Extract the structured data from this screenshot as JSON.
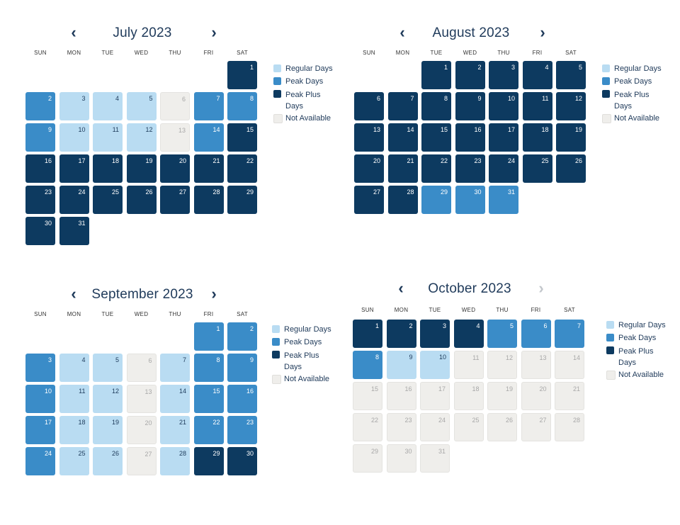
{
  "colors": {
    "regular": "#b9dcf2",
    "peak": "#3a8cc8",
    "peak_plus": "#0d3a60",
    "not_available": "#efeeeb"
  },
  "weekdays": [
    "SUN",
    "MON",
    "TUE",
    "WED",
    "THU",
    "FRI",
    "SAT"
  ],
  "legend": {
    "regular": "Regular Days",
    "peak": "Peak Days",
    "peak_plus_line1": "Peak Plus",
    "peak_plus_line2": "Days",
    "not_available": "Not Available"
  },
  "calendars": [
    {
      "title": "July 2023",
      "prev_icon": "chevron-left-icon",
      "next_icon": "chevron-right-icon",
      "next_disabled": false,
      "start_weekday": 6,
      "days": [
        "plus",
        "peak",
        "reg",
        "reg",
        "reg",
        "na",
        "peak",
        "peak",
        "peak",
        "reg",
        "reg",
        "reg",
        "na",
        "peak",
        "plus",
        "plus",
        "plus",
        "plus",
        "plus",
        "plus",
        "plus",
        "plus",
        "plus",
        "plus",
        "plus",
        "plus",
        "plus",
        "plus",
        "plus",
        "plus",
        "plus"
      ]
    },
    {
      "title": "August 2023",
      "prev_icon": "chevron-left-icon",
      "next_icon": "chevron-right-icon",
      "next_disabled": false,
      "start_weekday": 2,
      "days": [
        "plus",
        "plus",
        "plus",
        "plus",
        "plus",
        "plus",
        "plus",
        "plus",
        "plus",
        "plus",
        "plus",
        "plus",
        "plus",
        "plus",
        "plus",
        "plus",
        "plus",
        "plus",
        "plus",
        "plus",
        "plus",
        "plus",
        "plus",
        "plus",
        "plus",
        "plus",
        "plus",
        "plus",
        "peak",
        "peak",
        "peak"
      ]
    },
    {
      "title": "September 2023",
      "prev_icon": "chevron-left-icon",
      "next_icon": "chevron-right-icon",
      "next_disabled": false,
      "start_weekday": 5,
      "days": [
        "peak",
        "peak",
        "peak",
        "reg",
        "reg",
        "na",
        "reg",
        "peak",
        "peak",
        "peak",
        "reg",
        "reg",
        "na",
        "reg",
        "peak",
        "peak",
        "peak",
        "reg",
        "reg",
        "na",
        "reg",
        "peak",
        "peak",
        "peak",
        "reg",
        "reg",
        "na",
        "reg",
        "plus",
        "plus"
      ]
    },
    {
      "title": "October 2023",
      "prev_icon": "chevron-left-icon",
      "next_icon": "chevron-right-icon",
      "next_disabled": true,
      "start_weekday": 0,
      "days": [
        "plus",
        "plus",
        "plus",
        "plus",
        "peak",
        "peak",
        "peak",
        "peak",
        "reg",
        "reg",
        "na",
        "na",
        "na",
        "na",
        "na",
        "na",
        "na",
        "na",
        "na",
        "na",
        "na",
        "na",
        "na",
        "na",
        "na",
        "na",
        "na",
        "na",
        "na",
        "na",
        "na"
      ]
    }
  ]
}
